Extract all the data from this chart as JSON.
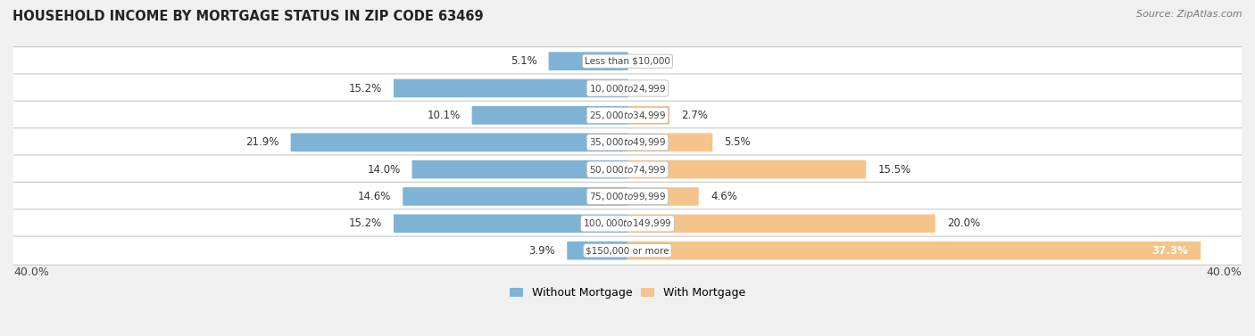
{
  "title": "HOUSEHOLD INCOME BY MORTGAGE STATUS IN ZIP CODE 63469",
  "source": "Source: ZipAtlas.com",
  "categories": [
    "Less than $10,000",
    "$10,000 to $24,999",
    "$25,000 to $34,999",
    "$35,000 to $49,999",
    "$50,000 to $74,999",
    "$75,000 to $99,999",
    "$100,000 to $149,999",
    "$150,000 or more"
  ],
  "without_mortgage": [
    5.1,
    15.2,
    10.1,
    21.9,
    14.0,
    14.6,
    15.2,
    3.9
  ],
  "with_mortgage": [
    0.0,
    0.0,
    2.7,
    5.5,
    15.5,
    4.6,
    20.0,
    37.3
  ],
  "color_without": "#7fb3d6",
  "color_with": "#f5c48a",
  "axis_max": 40.0,
  "bg_color": "#f0f0f0",
  "legend_label_without": "Without Mortgage",
  "legend_label_with": "With Mortgage",
  "label_inside_threshold": 30.0
}
